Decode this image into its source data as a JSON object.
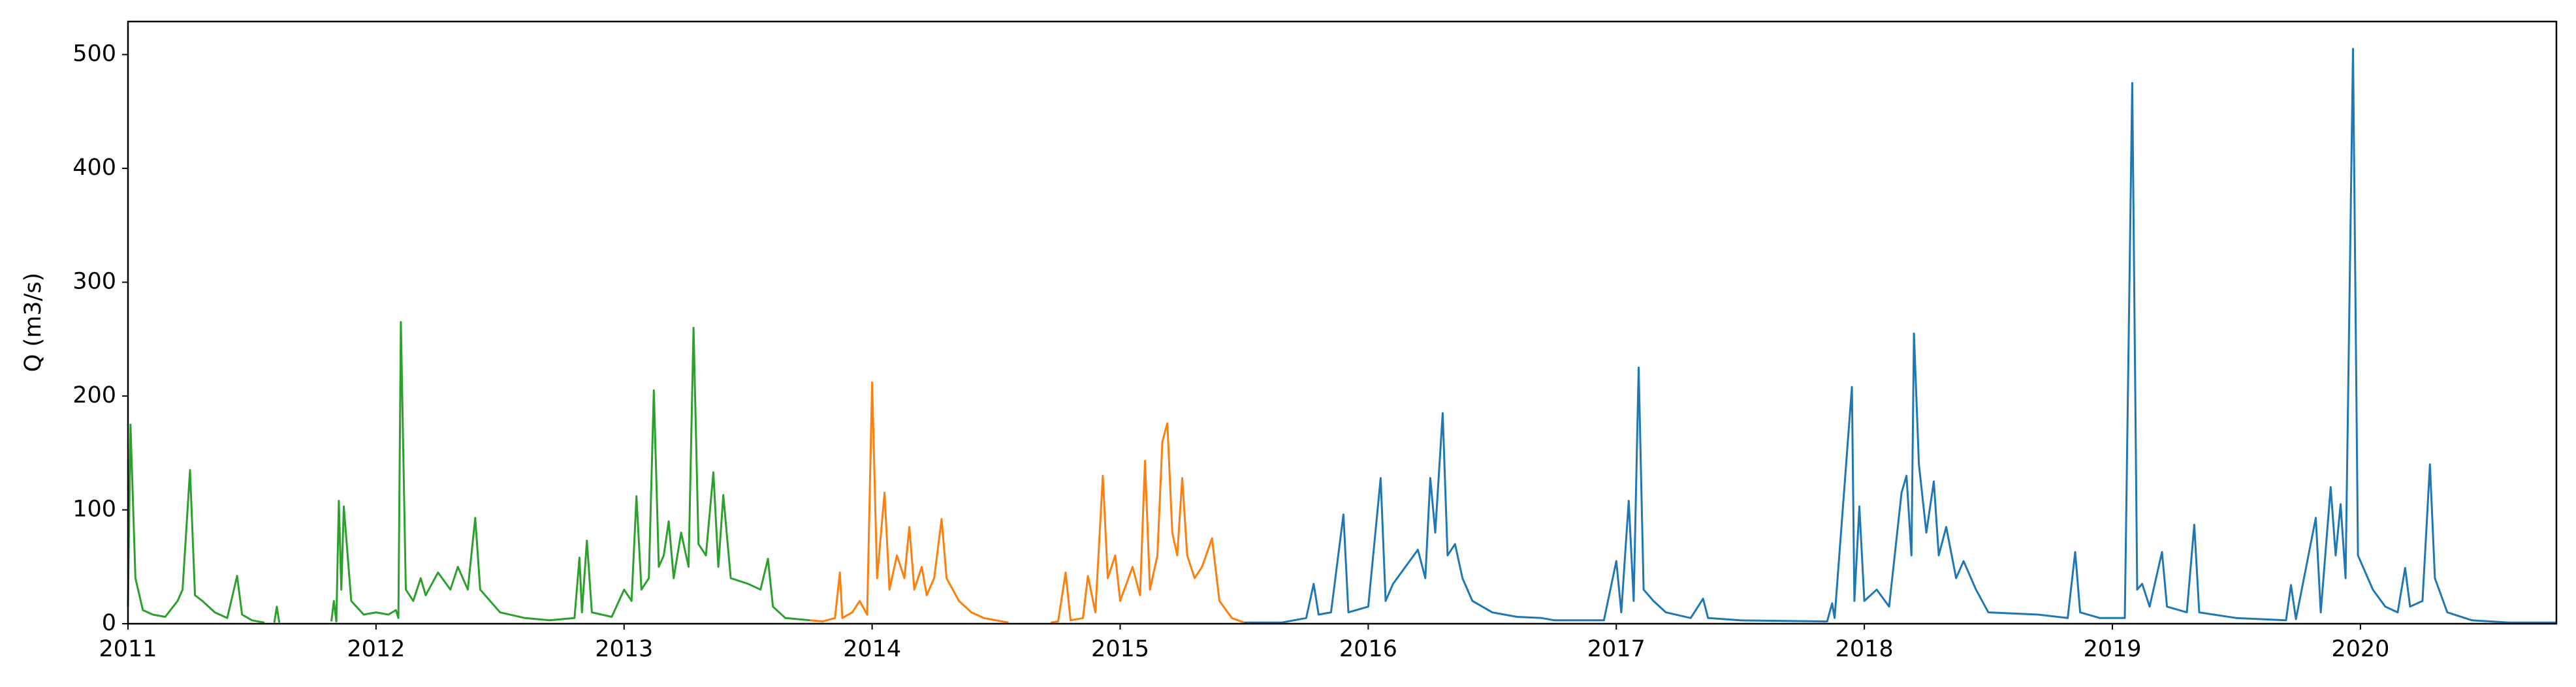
{
  "chart_data": {
    "type": "line",
    "y_label": "Q (m3/s)",
    "xlim": [
      2011,
      2020.79
    ],
    "xticks": [
      2011,
      2012,
      2013,
      2014,
      2015,
      2016,
      2017,
      2018,
      2019,
      2020
    ],
    "ylim": [
      0,
      529
    ],
    "yticks": [
      0,
      100,
      200,
      300,
      400,
      500
    ],
    "series": [
      {
        "color": "#2ca02c",
        "x": [
          2011.0,
          2011.01,
          2011.03,
          2011.06,
          2011.1,
          2011.15,
          2011.2,
          2011.22,
          2011.25,
          2011.27,
          2011.3,
          2011.35,
          2011.4,
          2011.44,
          2011.46,
          2011.5,
          2011.55,
          null,
          2011.59,
          2011.6,
          2011.61,
          null,
          2011.82,
          2011.83,
          2011.84,
          2011.85,
          2011.86,
          2011.87,
          2011.9,
          2011.95,
          2012.0,
          2012.05,
          2012.08,
          2012.09,
          2012.1,
          2012.12,
          2012.15,
          2012.18,
          2012.2,
          2012.25,
          2012.3,
          2012.33,
          2012.37,
          2012.4,
          2012.42,
          2012.46,
          2012.5,
          2012.6,
          2012.7,
          2012.8,
          2012.82,
          2012.83,
          2012.85,
          2012.87,
          2012.95,
          2013.0,
          2013.03,
          2013.05,
          2013.07,
          2013.1,
          2013.12,
          2013.14,
          2013.16,
          2013.18,
          2013.2,
          2013.23,
          2013.26,
          2013.28,
          2013.3,
          2013.33,
          2013.36,
          2013.38,
          2013.4,
          2013.43,
          2013.5,
          2013.55,
          2013.58,
          2013.6,
          2013.65,
          2013.75
        ],
        "values": [
          15,
          175,
          40,
          12,
          8,
          6,
          20,
          30,
          135,
          25,
          20,
          10,
          5,
          42,
          8,
          3,
          1,
          null,
          1,
          15,
          1,
          null,
          2,
          20,
          2,
          108,
          30,
          103,
          20,
          8,
          10,
          8,
          12,
          5,
          265,
          30,
          20,
          40,
          25,
          45,
          30,
          50,
          30,
          93,
          30,
          20,
          10,
          5,
          3,
          5,
          58,
          10,
          73,
          10,
          6,
          30,
          20,
          112,
          30,
          40,
          205,
          50,
          60,
          90,
          40,
          80,
          50,
          260,
          70,
          60,
          133,
          50,
          113,
          40,
          35,
          30,
          57,
          15,
          5,
          3
        ]
      },
      {
        "color": "#ff7f0e",
        "x": [
          2013.75,
          2013.8,
          2013.85,
          2013.87,
          2013.88,
          2013.92,
          2013.95,
          2013.98,
          2014.0,
          2014.02,
          2014.05,
          2014.07,
          2014.1,
          2014.13,
          2014.15,
          2014.17,
          2014.2,
          2014.22,
          2014.25,
          2014.28,
          2014.3,
          2014.35,
          2014.4,
          2014.45,
          2014.5,
          2014.55,
          null,
          2014.72,
          2014.75,
          2014.78,
          2014.8,
          2014.85,
          2014.87,
          2014.9,
          2014.93,
          2014.95,
          2014.98,
          2015.0,
          2015.05,
          2015.08,
          2015.1,
          2015.12,
          2015.15,
          2015.17,
          2015.19,
          2015.21,
          2015.23,
          2015.25,
          2015.27,
          2015.3,
          2015.33,
          2015.37,
          2015.4,
          2015.45,
          2015.5
        ],
        "values": [
          3,
          2,
          5,
          45,
          5,
          10,
          20,
          8,
          212,
          40,
          115,
          30,
          60,
          40,
          85,
          30,
          50,
          25,
          40,
          92,
          40,
          20,
          10,
          5,
          3,
          1,
          null,
          1,
          2,
          45,
          3,
          5,
          42,
          10,
          130,
          40,
          60,
          20,
          50,
          25,
          143,
          30,
          60,
          160,
          176,
          80,
          60,
          128,
          60,
          40,
          50,
          75,
          20,
          5,
          1
        ]
      },
      {
        "color": "#1f77b4",
        "x": [
          2015.5,
          2015.65,
          2015.75,
          2015.78,
          2015.8,
          2015.85,
          2015.9,
          2015.92,
          2016.0,
          2016.05,
          2016.07,
          2016.1,
          2016.15,
          2016.2,
          2016.23,
          2016.25,
          2016.27,
          2016.3,
          2016.32,
          2016.35,
          2016.38,
          2016.42,
          2016.5,
          2016.6,
          2016.7,
          2016.75,
          2016.95,
          2017.0,
          2017.02,
          2017.05,
          2017.07,
          2017.09,
          2017.11,
          2017.15,
          2017.2,
          2017.3,
          2017.35,
          2017.37,
          2017.5,
          2017.85,
          2017.87,
          2017.88,
          2017.95,
          2017.96,
          2017.98,
          2018.0,
          2018.05,
          2018.1,
          2018.15,
          2018.17,
          2018.19,
          2018.2,
          2018.22,
          2018.25,
          2018.28,
          2018.3,
          2018.33,
          2018.37,
          2018.4,
          2018.45,
          2018.5,
          2018.7,
          2018.82,
          2018.85,
          2018.87,
          2018.95,
          2019.05,
          2019.08,
          2019.1,
          2019.12,
          2019.15,
          2019.2,
          2019.22,
          2019.3,
          2019.33,
          2019.35,
          2019.5,
          2019.7,
          2019.72,
          2019.74,
          2019.82,
          2019.84,
          2019.88,
          2019.9,
          2019.92,
          2019.94,
          2019.95,
          2019.97,
          2019.99,
          2020.05,
          2020.1,
          2020.15,
          2020.18,
          2020.2,
          2020.25,
          2020.28,
          2020.3,
          2020.35,
          2020.45,
          2020.6,
          2020.79
        ],
        "values": [
          1,
          1,
          5,
          35,
          8,
          10,
          96,
          10,
          15,
          128,
          20,
          35,
          50,
          65,
          40,
          128,
          80,
          185,
          60,
          70,
          40,
          20,
          10,
          6,
          5,
          3,
          3,
          55,
          10,
          108,
          20,
          225,
          30,
          20,
          10,
          5,
          22,
          5,
          3,
          2,
          18,
          5,
          208,
          20,
          103,
          20,
          30,
          15,
          115,
          130,
          60,
          255,
          140,
          80,
          125,
          60,
          85,
          40,
          55,
          30,
          10,
          8,
          5,
          63,
          10,
          5,
          5,
          475,
          30,
          35,
          15,
          63,
          15,
          10,
          87,
          10,
          5,
          3,
          34,
          4,
          93,
          10,
          120,
          60,
          105,
          40,
          195,
          505,
          60,
          30,
          15,
          10,
          49,
          15,
          20,
          140,
          40,
          10,
          3,
          1,
          1
        ]
      }
    ]
  }
}
